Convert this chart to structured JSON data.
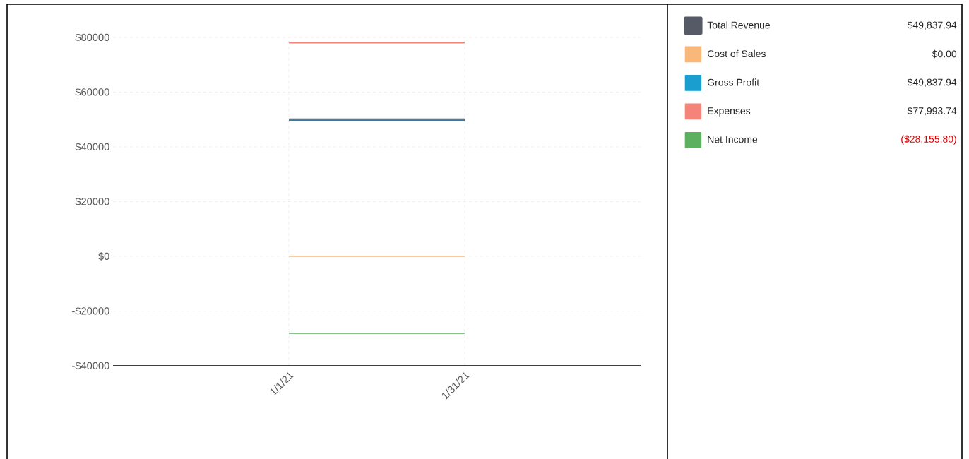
{
  "chart_data": {
    "type": "line",
    "categories": [
      "1/1/21",
      "1/31/21"
    ],
    "series": [
      {
        "name": "Total Revenue",
        "color": "#565a66",
        "values": [
          49837.94,
          49837.94
        ]
      },
      {
        "name": "Cost of Sales",
        "color": "#f9b87a",
        "values": [
          0,
          0
        ]
      },
      {
        "name": "Gross Profit",
        "color": "#1a9ecf",
        "values": [
          49837.94,
          49837.94
        ]
      },
      {
        "name": "Expenses",
        "color": "#f4847a",
        "values": [
          77993.74,
          77993.74
        ]
      },
      {
        "name": "Net Income",
        "color": "#5cb060",
        "values": [
          -28155.8,
          -28155.8
        ]
      }
    ],
    "ylim": [
      -40000,
      80000
    ],
    "yticks": [
      {
        "value": -40000,
        "label": "-$40000"
      },
      {
        "value": -20000,
        "label": "-$20000"
      },
      {
        "value": 0,
        "label": "$0"
      },
      {
        "value": 20000,
        "label": "$20000"
      },
      {
        "value": 40000,
        "label": "$40000"
      },
      {
        "value": 60000,
        "label": "$60000"
      },
      {
        "value": 80000,
        "label": "$80000"
      }
    ],
    "grid": true,
    "legend": "right",
    "annotations": [
      "$49,837.94",
      "$0.00",
      "$49,837.94",
      "$77,993.74",
      "($28,155.80)"
    ]
  }
}
